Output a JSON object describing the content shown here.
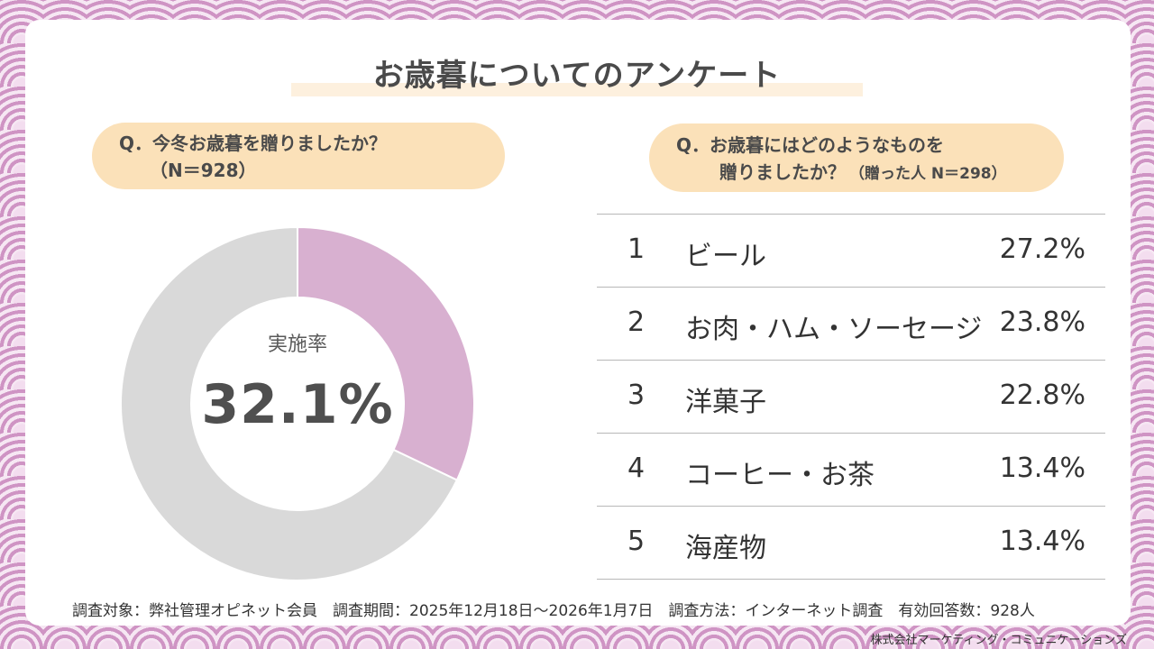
{
  "title": "お歳暮についてのアンケート",
  "left_question": {
    "line1": "Q．今冬お歳暮を贈りましたか？",
    "line2": "（N＝928）"
  },
  "right_question": {
    "line1": "Q．お歳暮にはどのようなものを",
    "line2": "贈りましたか？",
    "line2_note": "（贈った人 N＝298）"
  },
  "colors": {
    "highlight": "#d8b0d0",
    "remainder": "#d9d9d9",
    "pill": "#fbe1b9",
    "background_pattern": "#d9a7d0"
  },
  "chart_data": [
    {
      "type": "pie",
      "style": "donut",
      "center_label": "実施率",
      "center_value": "32.1%",
      "slices": [
        {
          "value": 32.1,
          "color": "#d8b0d0"
        },
        {
          "value": 67.9,
          "color": "#d9d9d9"
        }
      ]
    },
    {
      "type": "table",
      "rows": [
        {
          "rank": "1",
          "item": "ビール",
          "percent": "27.2%"
        },
        {
          "rank": "2",
          "item": "お肉・ハム・ソーセージ",
          "percent": "23.8%"
        },
        {
          "rank": "3",
          "item": "洋菓子",
          "percent": "22.8%"
        },
        {
          "rank": "4",
          "item": "コーヒー・お茶",
          "percent": "13.4%"
        },
        {
          "rank": "5",
          "item": "海産物",
          "percent": "13.4%"
        }
      ]
    }
  ],
  "footnote": "調査対象：弊社管理オピネット会員　調査期間：2025年12月18日～2026年1月7日　調査方法：インターネット調査　有効回答数：928人",
  "credit": "株式会社マーケティング・コミュニケーションズ"
}
